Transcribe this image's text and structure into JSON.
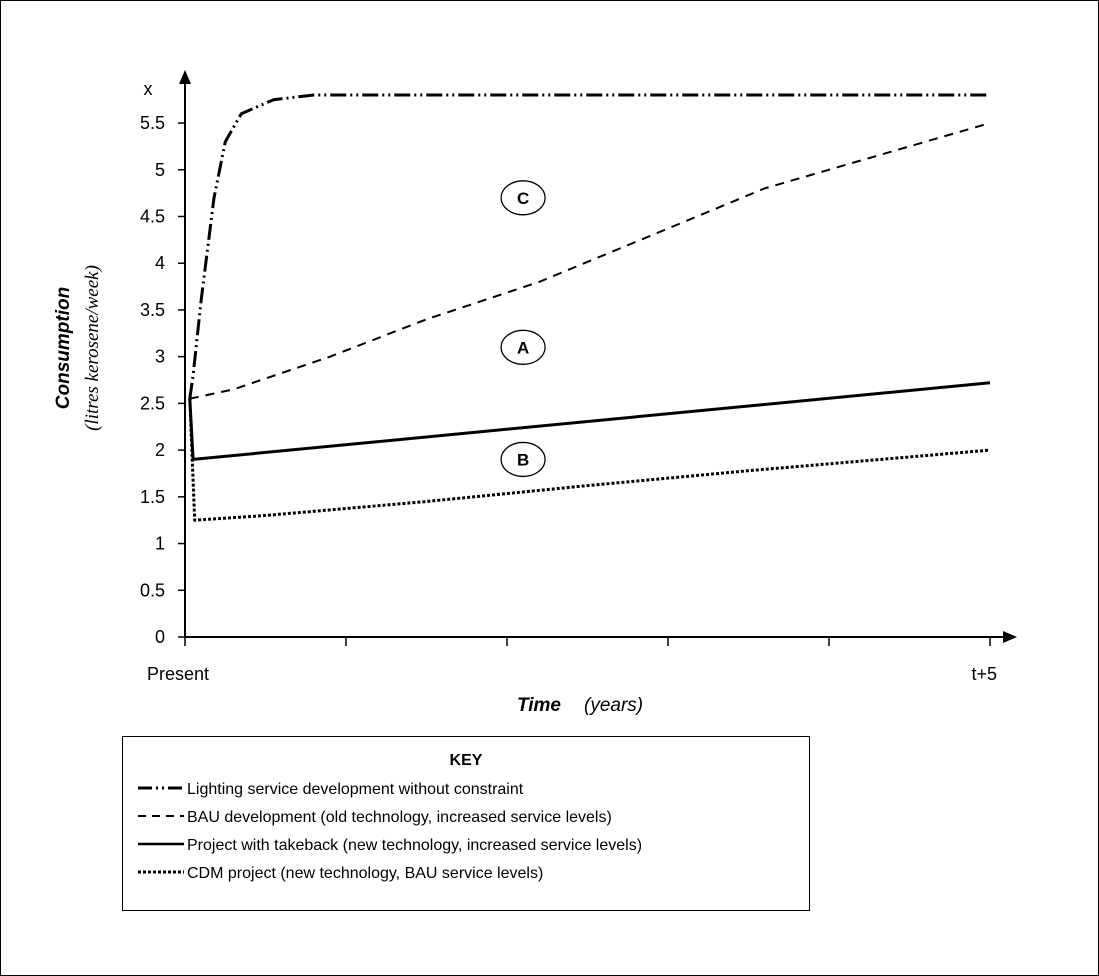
{
  "chart_data": {
    "type": "line",
    "ylabel": "Consumption",
    "ylabel_sub": "(litres kerosene/week)",
    "xlabel": "Time",
    "xlabel_sub": "(years)",
    "x_tick_labels": [
      {
        "x": 0,
        "label": "Present"
      },
      {
        "x": 5,
        "label": "t+5"
      }
    ],
    "xlim": [
      0,
      5
    ],
    "ylim": [
      0,
      5.8
    ],
    "y_ticks": [
      0,
      0.5,
      1,
      1.5,
      2,
      2.5,
      3,
      3.5,
      4,
      4.5,
      5,
      5.5
    ],
    "y_tick_labels": [
      "0",
      "0.5",
      "1",
      "1.5",
      "2",
      "2.5",
      "3",
      "3.5",
      "4",
      "4.5",
      "5",
      "5.5"
    ],
    "y_top_label": "x",
    "grid": false,
    "series": [
      {
        "name": "Lighting service development without constraint",
        "style": "dash-dot-dot",
        "points": [
          [
            0.03,
            2.55
          ],
          [
            0.05,
            2.8
          ],
          [
            0.1,
            3.6
          ],
          [
            0.18,
            4.7
          ],
          [
            0.25,
            5.3
          ],
          [
            0.35,
            5.6
          ],
          [
            0.55,
            5.75
          ],
          [
            0.8,
            5.8
          ],
          [
            5.0,
            5.8
          ]
        ]
      },
      {
        "name": "BAU development (old technology, increased service levels)",
        "style": "dashed",
        "points": [
          [
            0.03,
            2.55
          ],
          [
            0.3,
            2.65
          ],
          [
            0.9,
            3.0
          ],
          [
            1.5,
            3.4
          ],
          [
            2.2,
            3.8
          ],
          [
            2.9,
            4.3
          ],
          [
            3.6,
            4.8
          ],
          [
            4.3,
            5.15
          ],
          [
            5.0,
            5.5
          ]
        ]
      },
      {
        "name": "Project with takeback (new technology, increased service levels)",
        "style": "solid",
        "points": [
          [
            0.03,
            2.55
          ],
          [
            0.05,
            1.9
          ],
          [
            5.0,
            2.72
          ]
        ]
      },
      {
        "name": "CDM project (new technology, BAU service levels)",
        "style": "dotted",
        "points": [
          [
            0.03,
            2.55
          ],
          [
            0.06,
            1.25
          ],
          [
            0.5,
            1.3
          ],
          [
            1.5,
            1.45
          ],
          [
            2.5,
            1.62
          ],
          [
            3.5,
            1.78
          ],
          [
            5.0,
            2.0
          ]
        ]
      }
    ],
    "annotations": [
      {
        "text": "C",
        "x": 2.1,
        "y": 4.7
      },
      {
        "text": "A",
        "x": 2.1,
        "y": 3.1
      },
      {
        "text": "B",
        "x": 2.1,
        "y": 1.9
      }
    ],
    "legend": {
      "title": "KEY",
      "position": "bottom",
      "entries": [
        "Lighting service development without constraint",
        "BAU development (old technology, increased service levels)",
        "Project with takeback (new technology, increased service levels)",
        "CDM project (new technology, BAU service levels)"
      ]
    }
  }
}
